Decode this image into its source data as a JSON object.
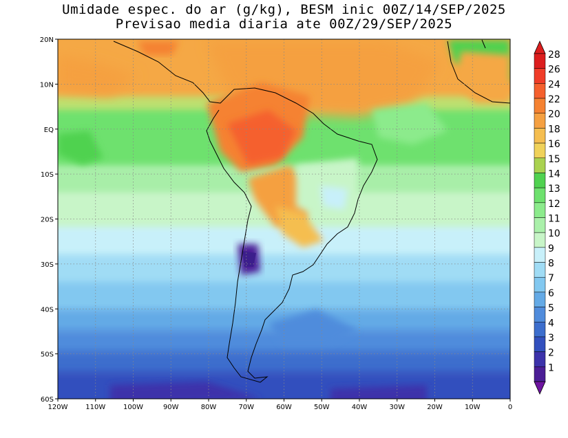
{
  "title": {
    "line1": "Umidade espec. do ar (g/kg), BESM inic 00Z/14/SEP/2025",
    "line2": "Previsao media diaria ate 00Z/29/SEP/2025"
  },
  "map": {
    "projection": "lon-lat",
    "lon_range": [
      -120,
      0
    ],
    "lat_range": [
      -60,
      20
    ],
    "lat_ticks": [
      {
        "value": 20,
        "label": "20N"
      },
      {
        "value": 10,
        "label": "10N"
      },
      {
        "value": 0,
        "label": "EQ"
      },
      {
        "value": -10,
        "label": "10S"
      },
      {
        "value": -20,
        "label": "20S"
      },
      {
        "value": -30,
        "label": "30S"
      },
      {
        "value": -40,
        "label": "40S"
      },
      {
        "value": -50,
        "label": "50S"
      },
      {
        "value": -60,
        "label": "60S"
      }
    ],
    "lon_ticks": [
      {
        "value": -120,
        "label": "120W"
      },
      {
        "value": -110,
        "label": "110W"
      },
      {
        "value": -100,
        "label": "100W"
      },
      {
        "value": -90,
        "label": "90W"
      },
      {
        "value": -80,
        "label": "80W"
      },
      {
        "value": -70,
        "label": "70W"
      },
      {
        "value": -60,
        "label": "60W"
      },
      {
        "value": -50,
        "label": "50W"
      },
      {
        "value": -40,
        "label": "40W"
      },
      {
        "value": -30,
        "label": "30W"
      },
      {
        "value": -20,
        "label": "20W"
      },
      {
        "value": -10,
        "label": "10W"
      },
      {
        "value": 0,
        "label": "0"
      }
    ],
    "grid": "dotted"
  },
  "colorbar": {
    "levels": [
      {
        "label": "28",
        "color": "#dc1e1e"
      },
      {
        "label": "26",
        "color": "#f03c28"
      },
      {
        "label": "24",
        "color": "#f5602d"
      },
      {
        "label": "22",
        "color": "#f58232"
      },
      {
        "label": "20",
        "color": "#f5a041"
      },
      {
        "label": "18",
        "color": "#f5be50"
      },
      {
        "label": "16",
        "color": "#f0d25a"
      },
      {
        "label": "15",
        "color": "#aad250"
      },
      {
        "label": "14",
        "color": "#50d250"
      },
      {
        "label": "13",
        "color": "#6ee16e"
      },
      {
        "label": "12",
        "color": "#8ceb8c"
      },
      {
        "label": "11",
        "color": "#aaf0aa"
      },
      {
        "label": "10",
        "color": "#c8f5c8"
      },
      {
        "label": "9",
        "color": "#c8f0fa"
      },
      {
        "label": "8",
        "color": "#a0dcf5"
      },
      {
        "label": "7",
        "color": "#82c8f0"
      },
      {
        "label": "6",
        "color": "#64aae6"
      },
      {
        "label": "5",
        "color": "#508cdc"
      },
      {
        "label": "4",
        "color": "#3c6ecd"
      },
      {
        "label": "3",
        "color": "#3250be"
      },
      {
        "label": "2",
        "color": "#3c32aa"
      },
      {
        "label": "1",
        "color": "#4b1e96"
      }
    ],
    "over_color": "#dc1e1e",
    "under_color": "#6e14a0"
  }
}
